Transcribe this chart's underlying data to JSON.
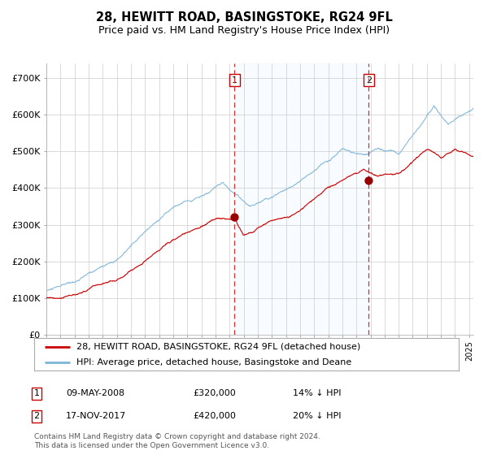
{
  "title": "28, HEWITT ROAD, BASINGSTOKE, RG24 9FL",
  "subtitle": "Price paid vs. HM Land Registry's House Price Index (HPI)",
  "title_fontsize": 10.5,
  "subtitle_fontsize": 9,
  "ylabel_ticks": [
    "£0",
    "£100K",
    "£200K",
    "£300K",
    "£400K",
    "£500K",
    "£600K",
    "£700K"
  ],
  "ytick_values": [
    0,
    100000,
    200000,
    300000,
    400000,
    500000,
    600000,
    700000
  ],
  "ylim": [
    0,
    740000
  ],
  "xlim_start": 1995.0,
  "xlim_end": 2025.3,
  "hpi_color": "#7cb4d8",
  "price_color": "#cc0000",
  "marker1_date": 2008.36,
  "marker1_price": 320000,
  "marker2_date": 2017.88,
  "marker2_price": 420000,
  "vline1_x": 2008.36,
  "vline2_x": 2017.88,
  "shade_start": 2008.36,
  "shade_end": 2017.88,
  "legend_entries": [
    "28, HEWITT ROAD, BASINGSTOKE, RG24 9FL (detached house)",
    "HPI: Average price, detached house, Basingstoke and Deane"
  ],
  "table_rows": [
    {
      "num": "1",
      "date": "09-MAY-2008",
      "price": "£320,000",
      "pct": "14% ↓ HPI"
    },
    {
      "num": "2",
      "date": "17-NOV-2017",
      "price": "£420,000",
      "pct": "20% ↓ HPI"
    }
  ],
  "footnote": "Contains HM Land Registry data © Crown copyright and database right 2024.\nThis data is licensed under the Open Government Licence v3.0.",
  "background_color": "#ffffff",
  "grid_color": "#cccccc",
  "shade_color": "#ddeeff"
}
